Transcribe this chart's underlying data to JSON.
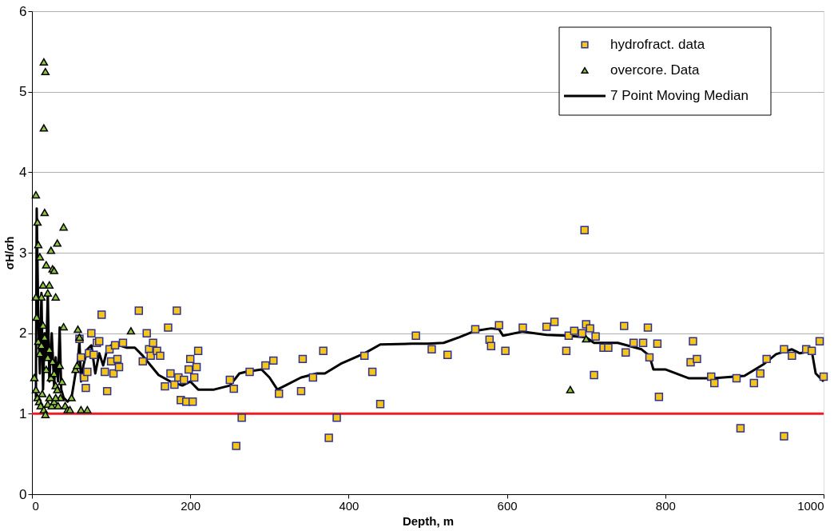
{
  "chart_data": {
    "type": "scatter",
    "xlabel": "Depth, m",
    "ylabel": "σH/σh",
    "xlim": [
      0,
      1000
    ],
    "ylim": [
      0,
      6
    ],
    "xticks": [
      0,
      200,
      400,
      600,
      800,
      1000
    ],
    "yticks": [
      0,
      1,
      2,
      3,
      4,
      5,
      6
    ],
    "grid": "y",
    "legend": "top right",
    "ref_lines": [
      {
        "axis": "y",
        "value": 1,
        "color": "#ee1c25"
      }
    ],
    "series": [
      {
        "name": "hydrofract. data",
        "marker": "square",
        "color": "#f5c518",
        "x": [
          60,
          62,
          66,
          68,
          70,
          72,
          75,
          78,
          82,
          85,
          88,
          92,
          95,
          98,
          100,
          103,
          105,
          108,
          110,
          115,
          135,
          140,
          145,
          148,
          150,
          153,
          158,
          162,
          168,
          172,
          175,
          180,
          183,
          185,
          188,
          192,
          195,
          198,
          200,
          203,
          205,
          208,
          210,
          250,
          255,
          258,
          265,
          275,
          295,
          305,
          312,
          340,
          342,
          355,
          368,
          375,
          385,
          420,
          430,
          440,
          485,
          505,
          525,
          560,
          578,
          580,
          590,
          598,
          620,
          650,
          660,
          675,
          678,
          685,
          695,
          698,
          700,
          705,
          710,
          712,
          722,
          728,
          748,
          750,
          760,
          772,
          778,
          780,
          790,
          792,
          832,
          835,
          840,
          858,
          862,
          890,
          895,
          912,
          920,
          928,
          950,
          950,
          960,
          978,
          985,
          995,
          1000
        ],
        "values": [
          1.93,
          1.7,
          1.45,
          1.32,
          1.52,
          1.75,
          2.0,
          1.73,
          1.88,
          1.9,
          2.23,
          1.52,
          1.28,
          1.8,
          1.65,
          1.5,
          1.85,
          1.68,
          1.58,
          1.88,
          2.28,
          1.65,
          2.0,
          1.8,
          1.72,
          1.88,
          1.78,
          1.72,
          1.34,
          2.07,
          1.5,
          1.36,
          2.28,
          1.45,
          1.17,
          1.42,
          1.15,
          1.55,
          1.68,
          1.15,
          1.45,
          1.58,
          1.78,
          1.42,
          1.31,
          0.6,
          0.95,
          1.52,
          1.6,
          1.66,
          1.25,
          1.28,
          1.68,
          1.45,
          1.78,
          0.7,
          0.95,
          1.72,
          1.52,
          1.12,
          1.97,
          1.8,
          1.73,
          2.05,
          1.92,
          1.84,
          2.1,
          1.78,
          2.07,
          2.08,
          2.14,
          1.78,
          1.97,
          2.03,
          2.0,
          3.28,
          2.11,
          2.06,
          1.48,
          1.96,
          1.82,
          1.82,
          2.09,
          1.76,
          1.88,
          1.88,
          2.07,
          1.7,
          1.87,
          1.21,
          1.64,
          1.9,
          1.68,
          1.46,
          1.38,
          1.44,
          0.82,
          1.38,
          1.5,
          1.68,
          1.8,
          0.72,
          1.72,
          1.8,
          1.78,
          1.9,
          1.46
        ]
      },
      {
        "name": "overcore. Data",
        "marker": "triangle",
        "color": "#8dc63f",
        "x": [
          5,
          7,
          8,
          10,
          12,
          14,
          15,
          17,
          15,
          16,
          18,
          20,
          22,
          24,
          26,
          28,
          30,
          32,
          40,
          5,
          6,
          8,
          10,
          12,
          14,
          16,
          18,
          20,
          22,
          24,
          26,
          28,
          30,
          32,
          35,
          36,
          38,
          3,
          5,
          7,
          9,
          11,
          13,
          15,
          17,
          20,
          22,
          25,
          28,
          30,
          33,
          40,
          42,
          45,
          48,
          50,
          55,
          57,
          58,
          60,
          62,
          70,
          125,
          680,
          700
        ],
        "values": [
          3.72,
          3.38,
          3.1,
          2.95,
          2.45,
          2.6,
          5.37,
          5.25,
          4.55,
          3.5,
          2.85,
          2.5,
          2.6,
          3.03,
          2.8,
          2.78,
          2.45,
          3.12,
          3.32,
          2.45,
          2.2,
          1.9,
          1.75,
          1.85,
          2.1,
          1.95,
          1.55,
          1.7,
          1.8,
          1.45,
          1.65,
          1.5,
          1.35,
          1.3,
          1.6,
          1.2,
          1.4,
          1.45,
          1.3,
          1.2,
          1.15,
          1.1,
          1.25,
          1.05,
          0.99,
          1.12,
          1.2,
          1.1,
          1.15,
          1.2,
          1.1,
          2.08,
          1.1,
          1.05,
          1.05,
          1.2,
          1.55,
          1.6,
          2.05,
          1.95,
          1.05,
          1.05,
          2.03,
          1.3,
          1.93
        ]
      },
      {
        "name": "7 Point Moving Median",
        "type": "line",
        "marker": "none",
        "line_style": "solid",
        "color": "#000000",
        "x": [
          5,
          6,
          8,
          10,
          12,
          14,
          16,
          18,
          20,
          22,
          25,
          28,
          30,
          33,
          35,
          37,
          40,
          45,
          50,
          55,
          58,
          60,
          62,
          65,
          70,
          75,
          80,
          85,
          90,
          95,
          100,
          110,
          120,
          130,
          140,
          150,
          160,
          175,
          190,
          200,
          210,
          230,
          250,
          262,
          270,
          290,
          300,
          310,
          320,
          340,
          360,
          370,
          390,
          420,
          440,
          480,
          500,
          520,
          540,
          560,
          580,
          590,
          595,
          620,
          650,
          675,
          700,
          710,
          740,
          770,
          780,
          785,
          800,
          830,
          860,
          900,
          925,
          940,
          960,
          970,
          985,
          990,
          1000
        ],
        "values": [
          1.2,
          3.55,
          2.2,
          1.5,
          2.5,
          1.3,
          2.0,
          1.7,
          2.5,
          1.4,
          2.0,
          1.35,
          1.7,
          1.4,
          2.07,
          1.3,
          1.2,
          1.15,
          1.2,
          1.5,
          1.65,
          1.9,
          1.4,
          1.6,
          1.8,
          1.85,
          1.5,
          1.75,
          1.6,
          1.8,
          1.85,
          1.85,
          1.82,
          1.82,
          1.72,
          1.6,
          1.48,
          1.4,
          1.35,
          1.4,
          1.3,
          1.3,
          1.35,
          1.5,
          1.52,
          1.55,
          1.45,
          1.3,
          1.35,
          1.45,
          1.5,
          1.5,
          1.62,
          1.75,
          1.86,
          1.87,
          1.87,
          1.88,
          1.95,
          2.03,
          2.06,
          2.05,
          1.97,
          2.02,
          1.98,
          1.97,
          1.95,
          1.88,
          1.88,
          1.8,
          1.72,
          1.55,
          1.55,
          1.44,
          1.44,
          1.47,
          1.62,
          1.74,
          1.8,
          1.75,
          1.78,
          1.5,
          1.4
        ]
      }
    ]
  }
}
